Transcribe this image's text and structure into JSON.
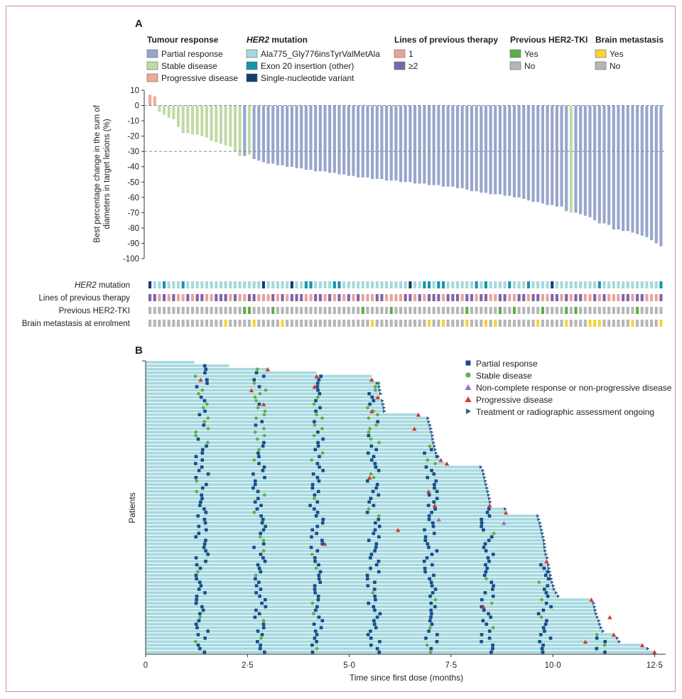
{
  "chart_data": [
    {
      "panel": "A",
      "type": "bar",
      "ylabel_lines": [
        "Best percentage change in the sum of",
        "diameters in target lesions (%)"
      ],
      "yticks": [
        10,
        0,
        -10,
        -20,
        -30,
        -40,
        -50,
        -60,
        -70,
        -80,
        -90,
        -100
      ],
      "ylim": [
        -100,
        10
      ],
      "reference_lines": [
        0,
        -30
      ],
      "values": [
        7,
        6,
        -4,
        -6,
        -8,
        -9,
        -14,
        -18,
        -18,
        -19,
        -19,
        -20,
        -21,
        -23,
        -24,
        -25,
        -26,
        -27,
        -30,
        -33,
        -33,
        -32,
        -35,
        -36,
        -37,
        -38,
        -38,
        -39,
        -39,
        -40,
        -40,
        -41,
        -41,
        -42,
        -42,
        -43,
        -43,
        -43,
        -44,
        -44,
        -45,
        -45,
        -46,
        -46,
        -47,
        -47,
        -47,
        -48,
        -48,
        -48,
        -49,
        -49,
        -49,
        -50,
        -50,
        -50,
        -51,
        -51,
        -51,
        -52,
        -52,
        -52,
        -53,
        -53,
        -53,
        -54,
        -54,
        -55,
        -56,
        -56,
        -57,
        -57,
        -58,
        -58,
        -58,
        -59,
        -59,
        -60,
        -60,
        -61,
        -62,
        -63,
        -63,
        -64,
        -65,
        -65,
        -66,
        -66,
        -69,
        -70,
        -70,
        -71,
        -72,
        -73,
        -75,
        -77,
        -77,
        -78,
        -81,
        -81,
        -82,
        -82,
        -83,
        -84,
        -85,
        -86,
        -88,
        -90,
        -92
      ],
      "response": [
        "PD",
        "PD",
        "SD",
        "SD",
        "SD",
        "SD",
        "SD",
        "SD",
        "SD",
        "SD",
        "SD",
        "SD",
        "SD",
        "SD",
        "SD",
        "SD",
        "SD",
        "SD",
        "SD",
        "SD",
        "PR",
        "SD",
        "PR",
        "PR",
        "PR",
        "PR",
        "PR",
        "PR",
        "PR",
        "PR",
        "PR",
        "PR",
        "PR",
        "PR",
        "PR",
        "PR",
        "PR",
        "PR",
        "PR",
        "PR",
        "PR",
        "PR",
        "PR",
        "PR",
        "PR",
        "PR",
        "PR",
        "PR",
        "PR",
        "PR",
        "PR",
        "PR",
        "PR",
        "PR",
        "PR",
        "PR",
        "PR",
        "PR",
        "PR",
        "PR",
        "PR",
        "PR",
        "PR",
        "PR",
        "PR",
        "PR",
        "PR",
        "PR",
        "PR",
        "PR",
        "PR",
        "PR",
        "PR",
        "PR",
        "PR",
        "PR",
        "PR",
        "PR",
        "PR",
        "PR",
        "PR",
        "PR",
        "PR",
        "PR",
        "PR",
        "PR",
        "PR",
        "PR",
        "PR",
        "SD",
        "PR",
        "PR",
        "PR",
        "PR",
        "PR",
        "PR",
        "PR",
        "PR",
        "PR",
        "PR",
        "PR",
        "PR",
        "PR",
        "PR",
        "PR",
        "PR",
        "PR",
        "PR",
        "PR"
      ],
      "heatmap_rows": [
        {
          "label_italic": "HER2",
          "label": " mutation",
          "codes": [
            "S",
            "A",
            "A",
            "E",
            "A",
            "A",
            "A",
            "E",
            "A",
            "A",
            "A",
            "A",
            "A",
            "A",
            "A",
            "A",
            "A",
            "A",
            "A",
            "A",
            "A",
            "A",
            "A",
            "A",
            "S",
            "A",
            "A",
            "A",
            "A",
            "A",
            "S",
            "A",
            "A",
            "E",
            "E",
            "A",
            "A",
            "A",
            "A",
            "E",
            "E",
            "A",
            "A",
            "A",
            "A",
            "A",
            "A",
            "A",
            "A",
            "A",
            "A",
            "A",
            "A",
            "A",
            "A",
            "S",
            "A",
            "A",
            "E",
            "E",
            "A",
            "E",
            "E",
            "A",
            "A",
            "A",
            "A",
            "A",
            "A",
            "E",
            "A",
            "E",
            "A",
            "A",
            "A",
            "A",
            "E",
            "A",
            "A",
            "A",
            "E",
            "A",
            "A",
            "A",
            "A",
            "S",
            "A",
            "A",
            "A",
            "A",
            "A",
            "A",
            "A",
            "A",
            "A",
            "E",
            "A",
            "A",
            "A",
            "A",
            "A",
            "A",
            "A",
            "A",
            "A",
            "A",
            "A",
            "A",
            "E"
          ]
        },
        {
          "label_italic": "",
          "label": "Lines of previous therapy",
          "codes": [
            "M",
            "M",
            "O",
            "M",
            "O",
            "M",
            "O",
            "O",
            "M",
            "O",
            "M",
            "M",
            "O",
            "O",
            "M",
            "M",
            "M",
            "O",
            "M",
            "O",
            "O",
            "M",
            "M",
            "O",
            "O",
            "O",
            "M",
            "O",
            "M",
            "O",
            "M",
            "M",
            "M",
            "O",
            "O",
            "M",
            "M",
            "O",
            "M",
            "O",
            "M",
            "O",
            "M",
            "O",
            "M",
            "O",
            "O",
            "O",
            "M",
            "M",
            "O",
            "O",
            "O",
            "O",
            "M",
            "M",
            "O",
            "M",
            "O",
            "M",
            "M",
            "M",
            "O",
            "M",
            "M",
            "M",
            "O",
            "M",
            "M",
            "O",
            "M",
            "M",
            "O",
            "O",
            "M",
            "M",
            "O",
            "O",
            "M",
            "M",
            "O",
            "M",
            "M",
            "O",
            "O",
            "M",
            "M",
            "O",
            "M",
            "O",
            "M",
            "M",
            "O",
            "O",
            "M",
            "O",
            "M",
            "O",
            "O",
            "O",
            "M",
            "M",
            "O",
            "M",
            "M",
            "O",
            "O",
            "O",
            "M"
          ]
        },
        {
          "label_italic": "",
          "label": "Previous HER2-TKI",
          "codes": [
            "N",
            "N",
            "N",
            "N",
            "N",
            "N",
            "N",
            "N",
            "N",
            "N",
            "N",
            "N",
            "N",
            "N",
            "N",
            "N",
            "N",
            "N",
            "N",
            "N",
            "Y",
            "Y",
            "N",
            "N",
            "N",
            "N",
            "Y",
            "N",
            "N",
            "N",
            "N",
            "N",
            "N",
            "N",
            "N",
            "N",
            "N",
            "N",
            "N",
            "N",
            "N",
            "N",
            "N",
            "N",
            "N",
            "Y",
            "N",
            "N",
            "N",
            "N",
            "N",
            "Y",
            "N",
            "N",
            "N",
            "N",
            "N",
            "N",
            "N",
            "N",
            "N",
            "N",
            "N",
            "N",
            "N",
            "N",
            "N",
            "Y",
            "N",
            "N",
            "N",
            "N",
            "N",
            "N",
            "Y",
            "N",
            "N",
            "Y",
            "N",
            "N",
            "N",
            "N",
            "N",
            "Y",
            "N",
            "N",
            "N",
            "N",
            "Y",
            "N",
            "Y",
            "N",
            "N",
            "N",
            "N",
            "N",
            "N",
            "N",
            "N",
            "N",
            "N",
            "N",
            "N",
            "Y",
            "N",
            "N",
            "N",
            "N",
            "N"
          ]
        },
        {
          "label_italic": "",
          "label": "Brain metastasis at enrolment",
          "codes": [
            "N",
            "N",
            "N",
            "N",
            "N",
            "N",
            "N",
            "N",
            "N",
            "N",
            "N",
            "N",
            "N",
            "N",
            "N",
            "N",
            "Y",
            "N",
            "N",
            "N",
            "N",
            "N",
            "Y",
            "N",
            "N",
            "N",
            "N",
            "N",
            "Y",
            "N",
            "N",
            "N",
            "N",
            "N",
            "N",
            "N",
            "N",
            "N",
            "N",
            "N",
            "N",
            "N",
            "N",
            "N",
            "N",
            "N",
            "N",
            "Y",
            "N",
            "N",
            "N",
            "N",
            "N",
            "N",
            "N",
            "N",
            "N",
            "N",
            "N",
            "Y",
            "N",
            "N",
            "Y",
            "N",
            "N",
            "N",
            "N",
            "Y",
            "N",
            "N",
            "N",
            "Y",
            "N",
            "Y",
            "N",
            "N",
            "N",
            "N",
            "N",
            "N",
            "N",
            "N",
            "Y",
            "N",
            "N",
            "N",
            "N",
            "N",
            "Y",
            "N",
            "N",
            "N",
            "N",
            "Y",
            "Y",
            "Y",
            "N",
            "N",
            "N",
            "N",
            "N",
            "N",
            "Y",
            "N",
            "N",
            "N",
            "N",
            "N",
            "Y"
          ]
        }
      ],
      "legend_groups": [
        {
          "title_italic": "",
          "title": "Tumour response",
          "items": [
            {
              "label": "Partial response",
              "color": "#98a6cc"
            },
            {
              "label": "Stable disease",
              "color": "#c2d9a6"
            },
            {
              "label": "Progressive disease",
              "color": "#f0a994"
            }
          ]
        },
        {
          "title_italic": "HER2",
          "title": " mutation",
          "items": [
            {
              "label": "Ala775_Gly776insTyrValMetAla",
              "color": "#a6d9dc"
            },
            {
              "label": "Exon 20 insertion (other)",
              "color": "#1596a8"
            },
            {
              "label": "Single-nucleotide variant",
              "color": "#113f6e"
            }
          ]
        },
        {
          "title_italic": "",
          "title": "Lines of previous therapy",
          "items": [
            {
              "label": "1",
              "color": "#e9a39d"
            },
            {
              "label": "≥2",
              "color": "#8064a8"
            }
          ]
        },
        {
          "title_italic": "",
          "title": "Previous HER2-TKI",
          "items": [
            {
              "label": "Yes",
              "color": "#5aaf46"
            },
            {
              "label": "No",
              "color": "#b6b6b6"
            }
          ]
        },
        {
          "title_italic": "",
          "title": "Brain metastasis",
          "items": [
            {
              "label": "Yes",
              "color": "#f4d437"
            },
            {
              "label": "No",
              "color": "#b6b6b6"
            }
          ]
        }
      ],
      "colors": {
        "PR": "#98a6cc",
        "SD": "#c2d9a6",
        "PD": "#f0a994",
        "A": "#a6d9dc",
        "E": "#1596a8",
        "S": "#113f6e",
        "O": "#e9a39d",
        "M": "#8064a8",
        "Y_tki": "#5aaf46",
        "Y_brain": "#f4d437",
        "N": "#b6b6b6"
      }
    },
    {
      "panel": "B",
      "type": "scatter",
      "subtype": "swimmer",
      "xlabel": "Time since first dose (months)",
      "ylabel": "Patients",
      "xticks": [
        "0",
        "2·5",
        "5·0",
        "7·5",
        "10·0",
        "12·5"
      ],
      "xtick_values": [
        0,
        2.5,
        5,
        7.5,
        10,
        12.5
      ],
      "xlim": [
        0,
        12.7
      ],
      "n_patients": 84,
      "durations": [
        1.2,
        2.05,
        3.0,
        4.2,
        5.55,
        5.6,
        5.65,
        5.7,
        5.72,
        5.74,
        5.76,
        5.78,
        5.8,
        5.82,
        5.83,
        6.7,
        6.9,
        6.92,
        6.95,
        6.97,
        6.99,
        7.01,
        7.02,
        7.04,
        7.06,
        7.08,
        7.1,
        7.15,
        7.25,
        7.4,
        8.2,
        8.25,
        8.27,
        8.29,
        8.31,
        8.33,
        8.35,
        8.37,
        8.39,
        8.41,
        8.43,
        8.45,
        8.8,
        8.85,
        9.6,
        9.62,
        9.65,
        9.67,
        9.69,
        9.71,
        9.73,
        9.75,
        9.76,
        9.77,
        9.78,
        9.8,
        9.83,
        9.85,
        9.86,
        9.87,
        9.89,
        9.91,
        9.93,
        9.95,
        9.98,
        10.0,
        10.05,
        10.1,
        10.95,
        10.97,
        10.99,
        11.01,
        11.03,
        11.06,
        11.1,
        11.12,
        11.15,
        11.2,
        11.5,
        11.55,
        11.6,
        12.2,
        12.3,
        12.5
      ],
      "events_PD": [
        [
          2,
          3.0
        ],
        [
          4,
          4.2
        ],
        [
          5,
          5.55
        ],
        [
          10,
          5.7
        ],
        [
          15,
          6.7
        ],
        [
          28,
          7.25
        ],
        [
          29,
          7.4
        ],
        [
          41,
          8.45
        ],
        [
          43,
          8.85
        ],
        [
          57,
          9.85
        ],
        [
          68,
          10.95
        ],
        [
          78,
          11.5
        ],
        [
          81,
          12.2
        ],
        [
          83,
          12.5
        ],
        [
          12,
          2.9
        ],
        [
          5,
          1.35
        ],
        [
          8,
          2.6
        ],
        [
          7,
          4.15
        ],
        [
          14,
          5.55
        ],
        [
          19,
          6.6
        ],
        [
          52,
          4.4
        ],
        [
          33,
          5.5
        ],
        [
          37,
          6.95
        ],
        [
          41,
          7.1
        ],
        [
          48,
          6.2
        ],
        [
          70,
          8.3
        ],
        [
          73,
          11.4
        ],
        [
          80,
          10.8
        ]
      ],
      "events_NN": [
        [
          45,
          7.2
        ],
        [
          46,
          8.8
        ]
      ],
      "ongoing_rows": [
        6,
        7,
        8,
        9,
        11,
        12,
        13,
        14,
        16,
        17,
        18,
        19,
        20,
        21,
        22,
        23,
        24,
        25,
        26,
        27,
        30,
        31,
        32,
        33,
        34,
        35,
        36,
        37,
        38,
        39,
        40,
        42,
        44,
        45,
        46,
        47,
        48,
        49,
        50,
        51,
        52,
        53,
        54,
        55,
        56,
        58,
        59,
        60,
        61,
        62,
        63,
        64,
        65,
        66,
        67,
        69,
        70,
        71,
        72,
        73,
        74,
        75,
        76,
        77,
        79,
        80,
        82
      ],
      "scan_times": [
        1.38,
        2.8,
        4.2,
        5.6,
        7.0,
        8.4,
        9.8,
        11.2
      ],
      "legend": [
        {
          "label": "Partial response",
          "marker": "square",
          "color": "#154d8a"
        },
        {
          "label": "Stable disease",
          "marker": "circle",
          "color": "#5fb04b"
        },
        {
          "label": "Non-complete response or non-progressive disease",
          "marker": "triangle",
          "color": "#9a6fc0"
        },
        {
          "label": "Progressive disease",
          "marker": "triangle",
          "color": "#d9372b"
        },
        {
          "label": "Treatment or radiographic assessment ongoing",
          "marker": "arrow",
          "color": "#2f5f8f"
        }
      ],
      "bar_color": "#a7d9e0"
    }
  ]
}
